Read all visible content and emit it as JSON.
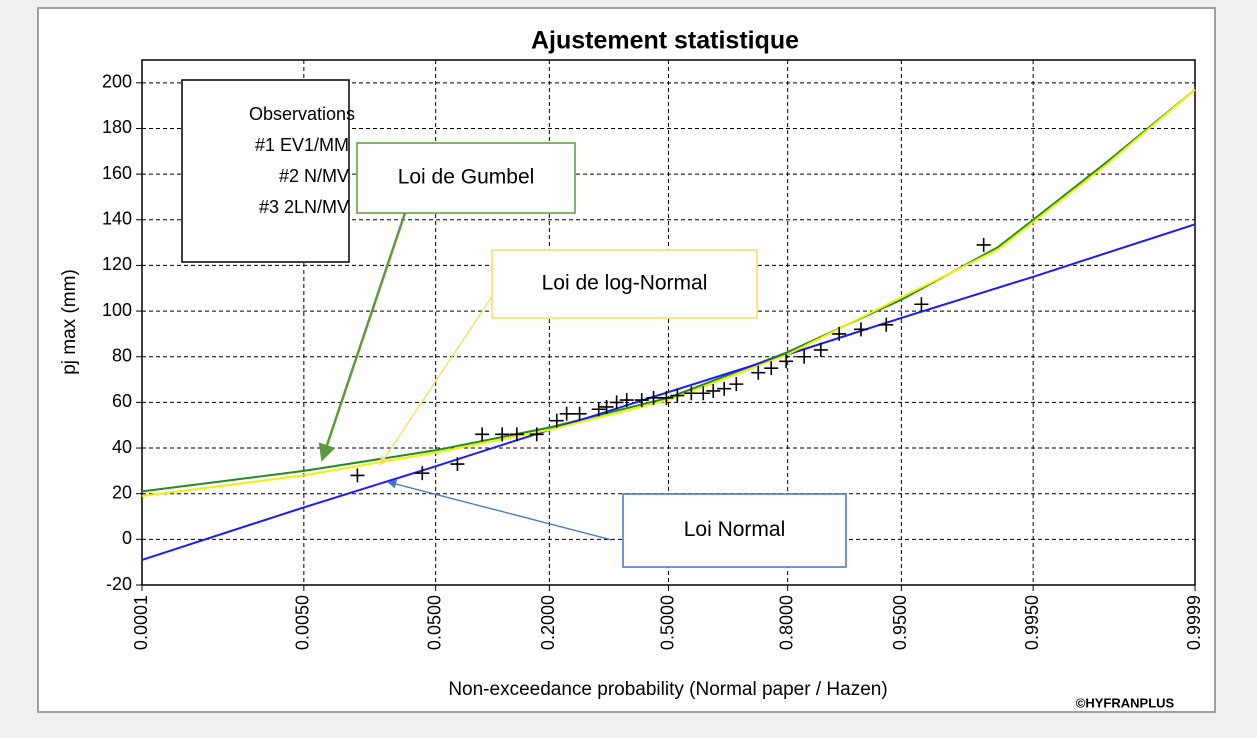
{
  "chart_data": {
    "type": "line",
    "title": "Ajustement statistique",
    "x_label": "Non-exceedance probability (Normal paper / Hazen)",
    "y_label": "pj max (mm)",
    "credit": "©HYFRANPLUS",
    "xscale": "normal",
    "xlim": [
      0.0001,
      0.9999
    ],
    "xticks": [
      0.0001,
      {
        "value": 0.005,
        "label": "0.0050"
      },
      {
        "value": 0.05,
        "label": "0.0500"
      },
      {
        "value": 0.2,
        "label": "0.2000"
      },
      {
        "value": 0.5,
        "label": "0.5000"
      },
      {
        "value": 0.8,
        "label": "0.8000"
      },
      {
        "value": 0.95,
        "label": "0.9500"
      },
      {
        "value": 0.995,
        "label": "0.9950"
      },
      0.9999
    ],
    "ylim": [
      -20,
      210
    ],
    "yticks": [
      -20,
      0,
      20,
      40,
      60,
      80,
      100,
      120,
      140,
      160,
      180,
      200
    ],
    "grid": true,
    "series": [
      {
        "name": "Observations",
        "type": "scatter",
        "color": "#000000",
        "x": [
          0.014,
          0.041,
          0.068,
          0.094,
          0.12,
          0.142,
          0.176,
          0.215,
          0.236,
          0.265,
          0.311,
          0.331,
          0.357,
          0.384,
          0.425,
          0.458,
          0.494,
          0.525,
          0.564,
          0.597,
          0.624,
          0.653,
          0.684,
          0.737,
          0.766,
          0.797,
          0.831,
          0.859,
          0.886,
          0.913,
          0.938,
          0.963,
          0.987
        ],
        "values": [
          28,
          29,
          33,
          46,
          46,
          46,
          46,
          52,
          55,
          55,
          57,
          58,
          60,
          61,
          61,
          62,
          62,
          63,
          64,
          64,
          65,
          66,
          68,
          73,
          75,
          78,
          80,
          83,
          90,
          92,
          94,
          103,
          129
        ]
      },
      {
        "name": "#1 EV1/MM",
        "type": "line",
        "color": "#1e8c1e",
        "x": [
          0.0001,
          0.005,
          0.05,
          0.2,
          0.5,
          0.8,
          0.95,
          0.99,
          0.995,
          0.999,
          0.9999
        ],
        "values": [
          21,
          30,
          39,
          49,
          62,
          82,
          105,
          128,
          140,
          165,
          197
        ]
      },
      {
        "name": "#2 N/MV",
        "type": "line",
        "color": "#1a1aff",
        "x": [
          0.0001,
          0.005,
          0.05,
          0.2,
          0.5,
          0.8,
          0.95,
          0.995,
          0.9999
        ],
        "values": [
          -9,
          14,
          32,
          48,
          64.5,
          81,
          97,
          115,
          138
        ]
      },
      {
        "name": "#3 2LN/MV",
        "type": "line",
        "color": "#f0f000",
        "x": [
          0.0001,
          0.005,
          0.05,
          0.2,
          0.5,
          0.8,
          0.95,
          0.99,
          0.995,
          0.999,
          0.9999
        ],
        "values": [
          19,
          28,
          38,
          48,
          61,
          81,
          106,
          127,
          139,
          164,
          197
        ]
      }
    ],
    "annotations": [
      {
        "text": "Loi de Gumbel",
        "color": "#5a9a3a"
      },
      {
        "text": "Loi de log-Normal",
        "color": "#ffd966"
      },
      {
        "text": "Loi Normal",
        "color": "#4472c4"
      }
    ]
  }
}
